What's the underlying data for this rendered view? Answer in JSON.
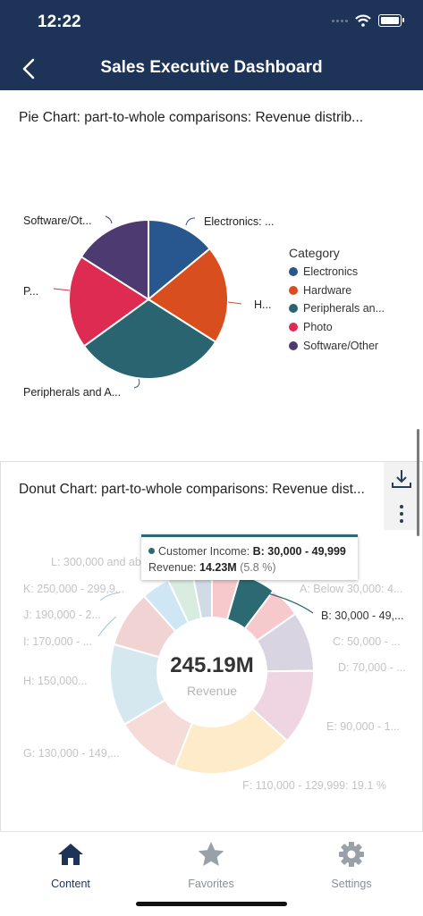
{
  "status": {
    "time": "12:22"
  },
  "nav": {
    "title": "Sales Executive Dashboard",
    "back_icon": "chevron-left-icon"
  },
  "pie_card": {
    "title": "Pie Chart: part-to-whole comparisons: Revenue distrib..."
  },
  "donut_card": {
    "title": "Donut Chart: part-to-whole comparisons: Revenue dist..."
  },
  "actions": {
    "download_icon": "download-icon",
    "more_icon": "more-vertical-icon"
  },
  "chart_data": [
    {
      "type": "pie",
      "title": "Pie Chart: part-to-whole comparisons: Revenue distrib...",
      "legend_title": "Category",
      "legend_position": "right",
      "slices": [
        {
          "name": "Electronics",
          "label": "Electronics: ...",
          "value": 14,
          "color": "#27578e"
        },
        {
          "name": "Hardware",
          "label": "H...",
          "value": 20,
          "color": "#d94e1f"
        },
        {
          "name": "Peripherals and Accessories",
          "legend_label": "Peripherals an...",
          "label": "Peripherals and A...",
          "value": 31,
          "color": "#2a6470"
        },
        {
          "name": "Photo",
          "label": "P...",
          "value": 19,
          "color": "#de2b51"
        },
        {
          "name": "Software/Other",
          "label": "Software/Ot...",
          "value": 16,
          "color": "#4d3a71"
        }
      ]
    },
    {
      "type": "pie",
      "subtype": "donut",
      "title": "Donut Chart: part-to-whole comparisons: Revenue dist...",
      "center_value": "245.19M",
      "center_label": "Revenue",
      "slices": [
        {
          "label": "A: Below 30,000: 4...",
          "value": 4.5,
          "color": "#f6c9cd"
        },
        {
          "label": "B: 30,000 - 49,...",
          "value": 5.8,
          "color": "#2c6a73"
        },
        {
          "label": "C: 50,000 - ...",
          "value": 5.0,
          "color": "#f6c9cd"
        },
        {
          "label": "D: 70,000 - ...",
          "value": 9.5,
          "color": "#d8d4e2"
        },
        {
          "label": "E: 90,000 - 1...",
          "value": 12.0,
          "color": "#efd5e1"
        },
        {
          "label": "F: 110,000 - 129,999: 19.1 %",
          "value": 19.1,
          "color": "#fdebc9"
        },
        {
          "label": "G: 130,000 - 149,...",
          "value": 10.5,
          "color": "#f6dcd8"
        },
        {
          "label": "H: 150,000...",
          "value": 13.0,
          "color": "#d6e8ef"
        },
        {
          "label": "I: 170,000 - ...",
          "value": 9.0,
          "color": "#f2d3d3"
        },
        {
          "label": "J: 190,000 - 2...",
          "value": 4.5,
          "color": "#cfe7f5"
        },
        {
          "label": "K: 250,000 - 299,9...",
          "value": 4.0,
          "color": "#d9ece0"
        },
        {
          "label": "L: 300,000 and abo...",
          "value": 3.1,
          "color": "#d0dbe6"
        }
      ],
      "tooltip": {
        "series": "Customer Income:",
        "category": "B: 30,000 - 49,999",
        "metric": "Revenue:",
        "value": "14.23M",
        "percent": "(5.8 %)"
      }
    }
  ],
  "tabs": [
    {
      "label": "Content",
      "icon": "home-icon",
      "active": true
    },
    {
      "label": "Favorites",
      "icon": "star-icon",
      "active": false
    },
    {
      "label": "Settings",
      "icon": "gear-icon",
      "active": false
    }
  ],
  "colors": {
    "nav_bg": "#1e3358",
    "active_tab": "#1e3358",
    "inactive_tab": "#9aa0a8"
  }
}
